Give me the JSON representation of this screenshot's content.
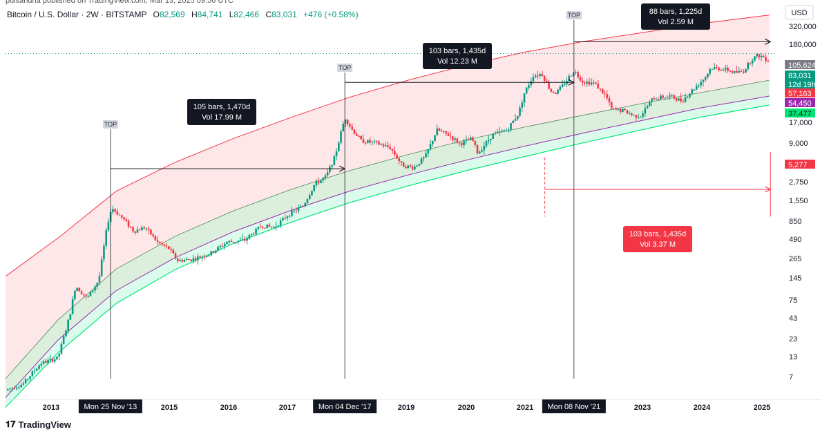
{
  "header": {
    "publisher_line": "pulsaridna published on TradingView.com, Mar 13, 2025 09:56 UTC",
    "symbol": "Bitcoin / U.S. Dollar · 2W · BITSTAMP",
    "o_label": "O",
    "o_value": "82,569",
    "h_label": "H",
    "h_value": "84,741",
    "l_label": "L",
    "l_value": "82,466",
    "c_label": "C",
    "c_value": "83,031",
    "change": "+476 (+0.58%)"
  },
  "footer": {
    "brand": "TradingView"
  },
  "chart_data": {
    "type": "candlestick",
    "title": "Bitcoin / U.S. Dollar · 2W · BITSTAMP",
    "yscale": "log",
    "currency": "USD",
    "ylim": [
      7,
      420000
    ],
    "xlim": [
      2012.1,
      2025.3
    ],
    "y_ticks": [
      "320,000",
      "180,000",
      "105,624",
      "83,031",
      "57,163",
      "54,450",
      "37,477",
      "17,000",
      "9,000",
      "5,277",
      "2,750",
      "1,550",
      "850",
      "490",
      "265",
      "145",
      "75",
      "43",
      "23",
      "13",
      "7"
    ],
    "x_ticks": [
      "2013",
      "2015",
      "2016",
      "2017",
      "2019",
      "2020",
      "2021",
      "2023",
      "2024",
      "2025"
    ],
    "price_labels": [
      {
        "value": 105624,
        "text": "105,624",
        "bg": "#787b86",
        "fg": "#ffffff"
      },
      {
        "value": 83031,
        "text": "83,031",
        "sub": "12d 19h",
        "bg": "#089981",
        "fg": "#ffffff"
      },
      {
        "value": 57163,
        "text": "57,163",
        "bg": "#f23645",
        "fg": "#ffffff"
      },
      {
        "value": 54450,
        "text": "54,450",
        "bg": "#9c27b0",
        "fg": "#ffffff"
      },
      {
        "value": 37477,
        "text": "37,477",
        "bg": "#00e676",
        "fg": "#131722"
      },
      {
        "value": 5277,
        "text": "5,277",
        "bg": "#f23645",
        "fg": "#ffffff"
      }
    ],
    "tops": [
      {
        "date": 2013.9,
        "label": "TOP",
        "date_label": "Mon 25 Nov '13"
      },
      {
        "date": 2017.92,
        "label": "TOP",
        "date_label": "Mon 04 Dec '17"
      },
      {
        "date": 2021.85,
        "label": "TOP",
        "date_label": "Mon 08 Nov '21"
      }
    ],
    "measurements": [
      {
        "start": 2013.9,
        "end": 2017.92,
        "level": 3500,
        "bars": "105 bars, 1,470d",
        "vol": "Vol 17.99 M",
        "color": "#131722"
      },
      {
        "start": 2017.92,
        "end": 2021.85,
        "level": 45000,
        "bars": "103 bars, 1,435d",
        "vol": "Vol 12.23 M",
        "color": "#131722"
      },
      {
        "start": 2021.85,
        "end": 2025.22,
        "level": 150000,
        "bars": "88 bars, 1,225d",
        "vol": "Vol 2.59 M",
        "color": "#131722"
      },
      {
        "start": 2021.35,
        "end": 2025.22,
        "level": 1900,
        "bars": "103 bars, 1,435d",
        "vol": "Vol 3.37 M",
        "color": "#f23645"
      }
    ],
    "bands": {
      "upper_red": [
        [
          2012.1,
          145
        ],
        [
          2013,
          450
        ],
        [
          2014,
          1800
        ],
        [
          2015,
          4200
        ],
        [
          2016,
          8500
        ],
        [
          2017,
          16000
        ],
        [
          2018,
          29000
        ],
        [
          2019,
          48000
        ],
        [
          2020,
          75000
        ],
        [
          2021,
          110000
        ],
        [
          2022,
          150000
        ],
        [
          2023,
          195000
        ],
        [
          2024,
          255000
        ],
        [
          2025.2,
          330000
        ]
      ],
      "mid_upper": [
        [
          2012.1,
          7
        ],
        [
          2013,
          40
        ],
        [
          2014,
          180
        ],
        [
          2015,
          470
        ],
        [
          2016,
          1000
        ],
        [
          2017,
          1900
        ],
        [
          2018,
          3300
        ],
        [
          2019,
          5300
        ],
        [
          2020,
          8200
        ],
        [
          2021,
          12000
        ],
        [
          2022,
          17000
        ],
        [
          2023,
          24000
        ],
        [
          2024,
          33000
        ],
        [
          2025.2,
          48000
        ]
      ],
      "purple": [
        [
          2012.1,
          4
        ],
        [
          2013,
          22
        ],
        [
          2014,
          95
        ],
        [
          2015,
          250
        ],
        [
          2016,
          540
        ],
        [
          2017,
          1020
        ],
        [
          2018,
          1800
        ],
        [
          2019,
          2900
        ],
        [
          2020,
          4500
        ],
        [
          2021,
          6800
        ],
        [
          2022,
          10000
        ],
        [
          2023,
          14500
        ],
        [
          2024,
          21000
        ],
        [
          2025.2,
          30000
        ]
      ],
      "green": [
        [
          2012.1,
          3
        ],
        [
          2013,
          15
        ],
        [
          2014,
          65
        ],
        [
          2015,
          175
        ],
        [
          2016,
          380
        ],
        [
          2017,
          720
        ],
        [
          2018,
          1280
        ],
        [
          2019,
          2100
        ],
        [
          2020,
          3300
        ],
        [
          2021,
          5000
        ],
        [
          2022,
          7500
        ],
        [
          2023,
          11000
        ],
        [
          2024,
          16000
        ],
        [
          2025.2,
          23000
        ]
      ]
    },
    "price_path": [
      [
        2012.1,
        5
      ],
      [
        2012.4,
        6
      ],
      [
        2012.7,
        11
      ],
      [
        2013.0,
        13
      ],
      [
        2013.2,
        45
      ],
      [
        2013.3,
        110
      ],
      [
        2013.5,
        75
      ],
      [
        2013.7,
        130
      ],
      [
        2013.85,
        700
      ],
      [
        2013.92,
        1100
      ],
      [
        2014.1,
        820
      ],
      [
        2014.3,
        550
      ],
      [
        2014.5,
        620
      ],
      [
        2014.7,
        400
      ],
      [
        2014.9,
        330
      ],
      [
        2015.05,
        230
      ],
      [
        2015.3,
        240
      ],
      [
        2015.6,
        280
      ],
      [
        2015.9,
        400
      ],
      [
        2016.2,
        420
      ],
      [
        2016.5,
        650
      ],
      [
        2016.7,
        610
      ],
      [
        2016.95,
        900
      ],
      [
        2017.2,
        1150
      ],
      [
        2017.4,
        2200
      ],
      [
        2017.6,
        2800
      ],
      [
        2017.75,
        5000
      ],
      [
        2017.92,
        16000
      ],
      [
        2018.05,
        11000
      ],
      [
        2018.2,
        8000
      ],
      [
        2018.45,
        7500
      ],
      [
        2018.7,
        6500
      ],
      [
        2018.9,
        3900
      ],
      [
        2019.1,
        3600
      ],
      [
        2019.3,
        5000
      ],
      [
        2019.5,
        11000
      ],
      [
        2019.7,
        9500
      ],
      [
        2019.9,
        7300
      ],
      [
        2020.1,
        8500
      ],
      [
        2020.2,
        5500
      ],
      [
        2020.45,
        9500
      ],
      [
        2020.7,
        11000
      ],
      [
        2020.9,
        18000
      ],
      [
        2021.0,
        33000
      ],
      [
        2021.15,
        55000
      ],
      [
        2021.3,
        58000
      ],
      [
        2021.45,
        35000
      ],
      [
        2021.55,
        33000
      ],
      [
        2021.7,
        45000
      ],
      [
        2021.85,
        64000
      ],
      [
        2022.0,
        46000
      ],
      [
        2022.2,
        44000
      ],
      [
        2022.4,
        30000
      ],
      [
        2022.5,
        20000
      ],
      [
        2022.7,
        19500
      ],
      [
        2022.9,
        16500
      ],
      [
        2023.0,
        17000
      ],
      [
        2023.2,
        28000
      ],
      [
        2023.5,
        30000
      ],
      [
        2023.7,
        26000
      ],
      [
        2023.9,
        37000
      ],
      [
        2024.1,
        52000
      ],
      [
        2024.2,
        70000
      ],
      [
        2024.45,
        66000
      ],
      [
        2024.6,
        60000
      ],
      [
        2024.75,
        62000
      ],
      [
        2024.9,
        90000
      ],
      [
        2025.0,
        100000
      ],
      [
        2025.1,
        96000
      ],
      [
        2025.2,
        83031
      ]
    ]
  }
}
